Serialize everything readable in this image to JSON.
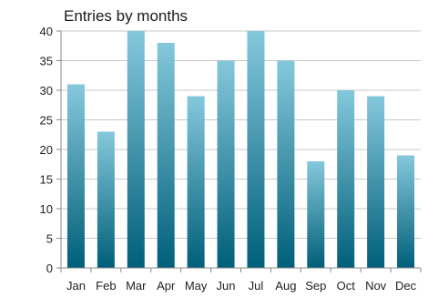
{
  "chart_data": {
    "type": "bar",
    "title": "Entries by months",
    "xlabel": "",
    "ylabel": "",
    "categories": [
      "Jan",
      "Feb",
      "Mar",
      "Apr",
      "May",
      "Jun",
      "Jul",
      "Aug",
      "Sep",
      "Oct",
      "Nov",
      "Dec"
    ],
    "series": [
      {
        "values": [
          31,
          23,
          40,
          38,
          29,
          35,
          40,
          35,
          18,
          30,
          29,
          19
        ]
      }
    ],
    "ylim": [
      0,
      40
    ],
    "yticks": [
      0,
      5,
      10,
      15,
      20,
      25,
      30,
      35,
      40
    ],
    "grid": true,
    "legend": "none",
    "colors": {
      "bar_top": "#85c8dc",
      "bar_bottom": "#005f79",
      "grid": "#c8c8c8",
      "axis": "#8a8a8a"
    }
  }
}
